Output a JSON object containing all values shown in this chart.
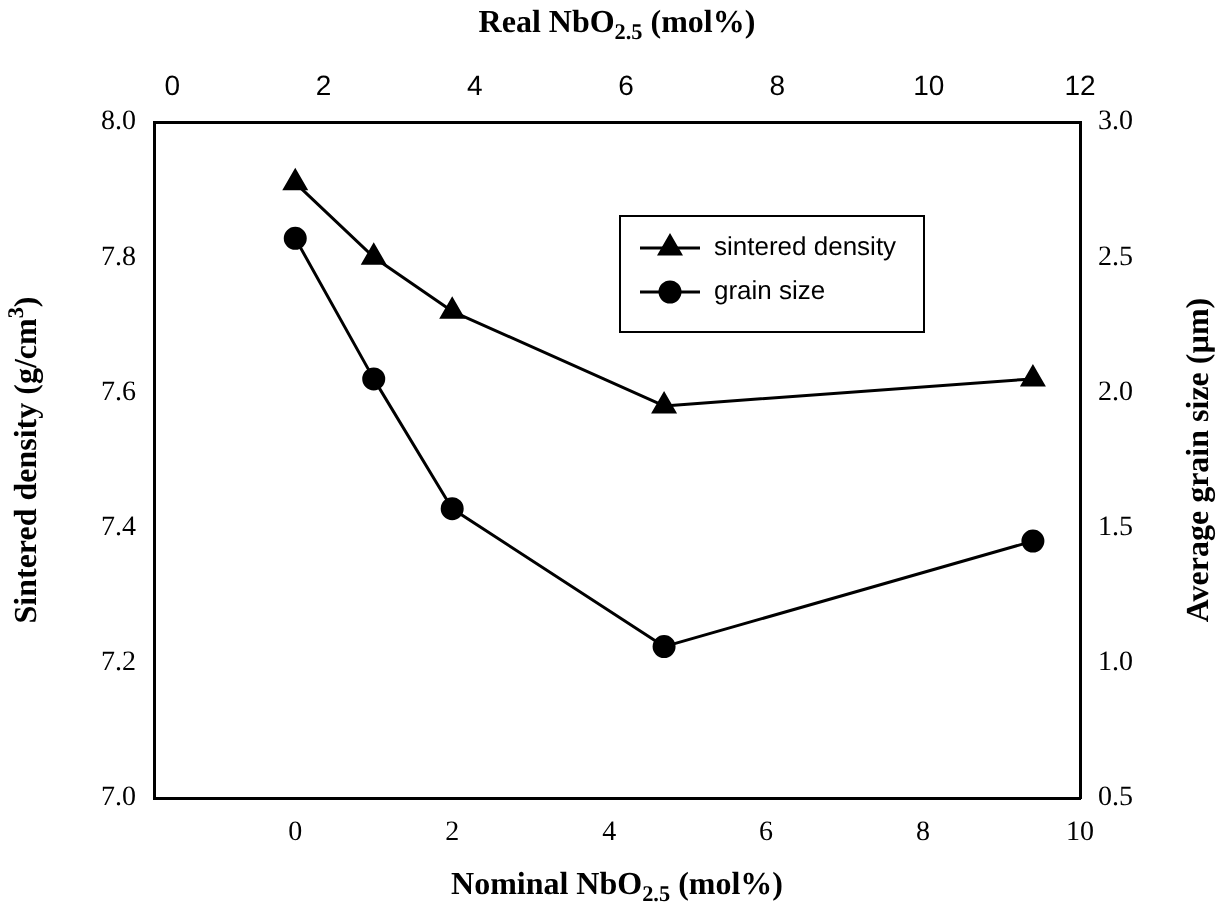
{
  "chart_data": {
    "type": "line",
    "xlabel": "Nominal NbO$_{2.5}$ (mol%)",
    "x2label": "Real NbO$_{2.5}$ (mol%)",
    "ylabel": "Sintered density (g/cm$^{3}$)",
    "y2label": "Average grain size (µm)",
    "x": [
      0,
      1,
      2,
      4.7,
      9.4
    ],
    "series": [
      {
        "name": "sintered density",
        "color": "#000000",
        "marker": "triangle",
        "values": [
          7.91,
          7.8,
          7.72,
          7.58,
          7.62
        ]
      },
      {
        "name": "grain size",
        "color": "#000000",
        "marker": "circle",
        "axis": "y2",
        "values": [
          2.57,
          2.05,
          1.57,
          1.06,
          1.45
        ]
      }
    ],
    "xlim": [
      -1.8,
      10
    ],
    "xticks": [
      0,
      2,
      4,
      6,
      8,
      10
    ],
    "x2lim": [
      -0.24,
      12
    ],
    "x2ticks": [
      0,
      2,
      4,
      6,
      8,
      10,
      12
    ],
    "ylim": [
      7.0,
      8.0
    ],
    "yticks": [
      {
        "value": 7.0,
        "label": "7.0"
      },
      7.2,
      7.4,
      7.6,
      7.8,
      {
        "value": 8.0,
        "label": "8.0"
      }
    ],
    "y2lim": [
      0.5,
      3.0
    ],
    "y2ticks": [
      0.5,
      {
        "value": 1.0,
        "label": "1.0"
      },
      1.5,
      {
        "value": 2.0,
        "label": "2.0"
      },
      2.5,
      {
        "value": 3.0,
        "label": "3.0"
      }
    ],
    "grid": false,
    "legend": "top right",
    "line_style": "solid"
  }
}
